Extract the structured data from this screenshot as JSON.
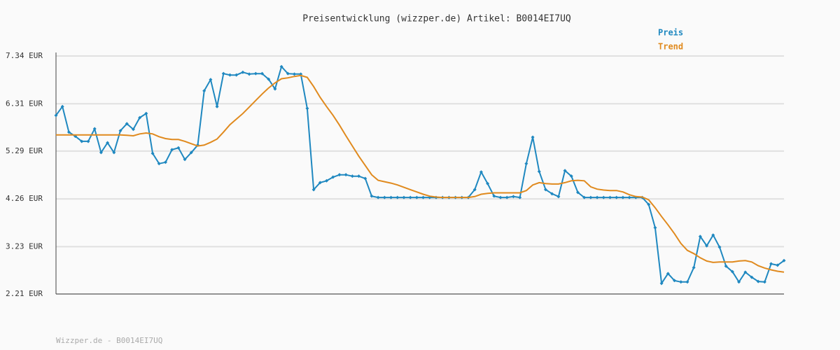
{
  "chart_data": {
    "type": "line",
    "title": "Preisentwicklung (wizzper.de) Artikel: B0014EI7UQ",
    "footer": "Wizzper.de - B0014EI7UQ",
    "legend": "top-right",
    "grid": true,
    "ylim": [
      2.21,
      7.34
    ],
    "yticks": [
      {
        "value": 7.34,
        "label": "7.34 EUR"
      },
      {
        "value": 6.31,
        "label": "6.31 EUR"
      },
      {
        "value": 5.29,
        "label": "5.29 EUR"
      },
      {
        "value": 4.26,
        "label": "4.26 EUR"
      },
      {
        "value": 3.23,
        "label": "3.23 EUR"
      },
      {
        "value": 2.21,
        "label": "2.21 EUR"
      }
    ],
    "series": [
      {
        "name": "Preis",
        "color": "#1f88c0",
        "markers": true,
        "values": [
          6.06,
          6.25,
          5.7,
          5.61,
          5.5,
          5.5,
          5.77,
          5.26,
          5.47,
          5.26,
          5.73,
          5.88,
          5.76,
          6.01,
          6.1,
          5.24,
          5.02,
          5.05,
          5.32,
          5.36,
          5.11,
          5.26,
          5.42,
          6.59,
          6.83,
          6.25,
          6.96,
          6.93,
          6.93,
          6.99,
          6.95,
          6.96,
          6.96,
          6.84,
          6.63,
          7.11,
          6.96,
          6.95,
          6.95,
          6.21,
          4.46,
          4.61,
          4.65,
          4.73,
          4.78,
          4.78,
          4.75,
          4.75,
          4.7,
          4.32,
          4.29,
          4.29,
          4.29,
          4.29,
          4.29,
          4.29,
          4.29,
          4.29,
          4.29,
          4.29,
          4.29,
          4.29,
          4.29,
          4.29,
          4.29,
          4.46,
          4.84,
          4.59,
          4.32,
          4.29,
          4.29,
          4.31,
          4.29,
          5.02,
          5.59,
          4.85,
          4.46,
          4.37,
          4.31,
          4.87,
          4.75,
          4.4,
          4.29,
          4.29,
          4.29,
          4.29,
          4.29,
          4.29,
          4.29,
          4.29,
          4.29,
          4.29,
          4.14,
          3.64,
          2.44,
          2.65,
          2.5,
          2.47,
          2.47,
          2.78,
          3.45,
          3.25,
          3.48,
          3.22,
          2.81,
          2.69,
          2.47,
          2.68,
          2.57,
          2.48,
          2.47,
          2.86,
          2.83,
          2.93
        ]
      },
      {
        "name": "Trend",
        "color": "#e08a1e",
        "markers": false,
        "values": [
          5.64,
          5.64,
          5.64,
          5.64,
          5.64,
          5.64,
          5.64,
          5.64,
          5.64,
          5.64,
          5.64,
          5.63,
          5.62,
          5.66,
          5.68,
          5.66,
          5.6,
          5.56,
          5.54,
          5.54,
          5.5,
          5.45,
          5.4,
          5.42,
          5.48,
          5.55,
          5.7,
          5.86,
          5.98,
          6.1,
          6.24,
          6.38,
          6.52,
          6.65,
          6.76,
          6.85,
          6.87,
          6.9,
          6.92,
          6.88,
          6.68,
          6.45,
          6.25,
          6.06,
          5.85,
          5.62,
          5.4,
          5.18,
          4.98,
          4.78,
          4.66,
          4.63,
          4.6,
          4.56,
          4.51,
          4.46,
          4.41,
          4.36,
          4.32,
          4.3,
          4.29,
          4.29,
          4.29,
          4.29,
          4.29,
          4.31,
          4.36,
          4.38,
          4.39,
          4.39,
          4.39,
          4.39,
          4.39,
          4.44,
          4.56,
          4.61,
          4.59,
          4.58,
          4.58,
          4.61,
          4.65,
          4.66,
          4.65,
          4.52,
          4.47,
          4.45,
          4.44,
          4.44,
          4.41,
          4.35,
          4.31,
          4.3,
          4.24,
          4.07,
          3.88,
          3.7,
          3.51,
          3.3,
          3.15,
          3.08,
          2.99,
          2.92,
          2.89,
          2.9,
          2.9,
          2.9,
          2.92,
          2.93,
          2.9,
          2.82,
          2.77,
          2.73,
          2.7,
          2.68
        ]
      }
    ]
  }
}
